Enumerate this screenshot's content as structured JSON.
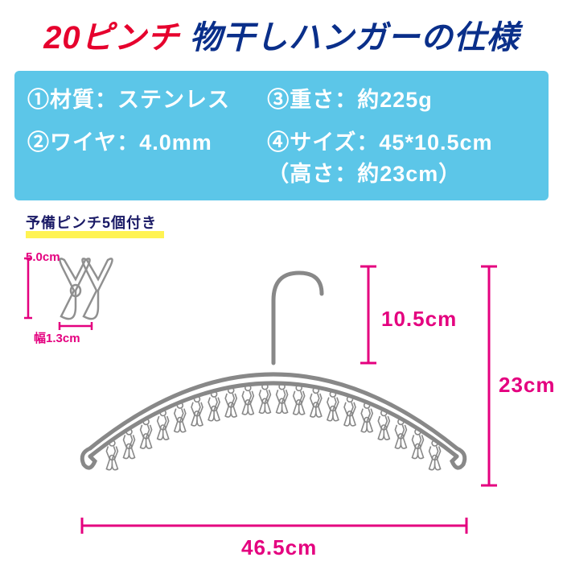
{
  "colors": {
    "red": "#e6002d",
    "blue": "#0a2f8a",
    "box_bg": "#5cc6e8",
    "magenta": "#e4007f",
    "extra_hl": "#fff352",
    "extra_text": "#1a1a66",
    "steel": "#a8a8a8",
    "steel_light": "#d0d0d0"
  },
  "title": {
    "pinch": "20ピンチ",
    "suffix": " 物干しハンガーの仕様"
  },
  "specs": {
    "s1": "①材質：ステンレス",
    "s2": "②ワイヤ：4.0mm",
    "s3": "③重さ：約225g",
    "s4": "④サイズ：45*10.5cm",
    "s4b": "（高さ：約23cm）"
  },
  "extra": {
    "label": "予備ピンチ5個付き",
    "h": "5.0cm",
    "w": "幅1.3cm"
  },
  "dims": {
    "hook_h": "10.5cm",
    "total_h": "23cm",
    "total_w": "46.5cm"
  },
  "hanger": {
    "clip_count": 20
  }
}
